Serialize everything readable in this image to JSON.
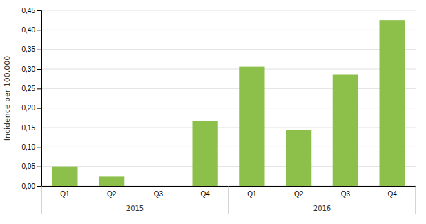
{
  "chart_data": {
    "type": "bar",
    "categories": [
      "Q1",
      "Q2",
      "Q3",
      "Q4",
      "Q1",
      "Q2",
      "Q3",
      "Q4"
    ],
    "annotations": [
      "2015",
      "2016"
    ],
    "values": [
      0.05,
      0.024,
      0.0,
      0.167,
      0.306,
      0.143,
      0.285,
      0.425
    ],
    "color": "#8DC04A",
    "ylabel": "Incidence per 100,000",
    "ylim": [
      0,
      0.45
    ],
    "yticks": [
      {
        "value": 0.0,
        "label": "0,00"
      },
      {
        "value": 0.05,
        "label": "0,05"
      },
      {
        "value": 0.1,
        "label": "0,10"
      },
      {
        "value": 0.15,
        "label": "0,15"
      },
      {
        "value": 0.2,
        "label": "0,20"
      },
      {
        "value": 0.25,
        "label": "0,25"
      },
      {
        "value": 0.3,
        "label": "0,30"
      },
      {
        "value": 0.35,
        "label": "0,35"
      },
      {
        "value": 0.4,
        "label": "0,40"
      },
      {
        "value": 0.45,
        "label": "0,45"
      }
    ],
    "grid": true
  }
}
